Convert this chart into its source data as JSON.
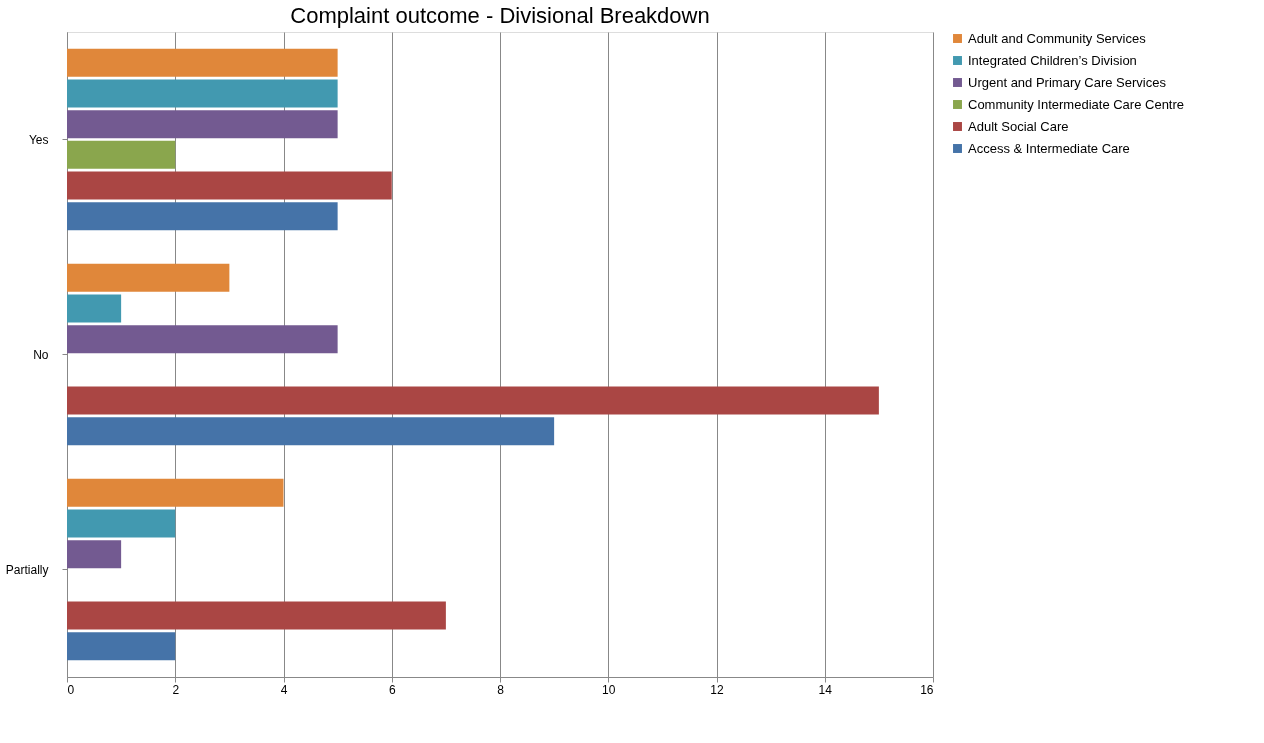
{
  "chart_data": {
    "type": "bar",
    "orientation": "horizontal",
    "title": "Complaint outcome -  Divisional Breakdown",
    "categories": [
      "Yes",
      "No",
      "Partially"
    ],
    "series": [
      {
        "name": "Adult and Community Services",
        "color": "#e0873a",
        "values": [
          5,
          3,
          4
        ]
      },
      {
        "name": "Integrated Children’s Division",
        "color": "#4299b0",
        "values": [
          5,
          1,
          2
        ]
      },
      {
        "name": "Urgent and Primary Care Services",
        "color": "#735a91",
        "values": [
          5,
          5,
          1
        ]
      },
      {
        "name": "Community Intermediate Care Centre",
        "color": "#8aa64d",
        "values": [
          2,
          null,
          null
        ]
      },
      {
        "name": "Adult Social Care",
        "color": "#aa4644",
        "values": [
          6,
          15,
          7
        ]
      },
      {
        "name": "Access & Intermediate Care",
        "color": "#4573a8",
        "values": [
          5,
          9,
          2
        ]
      }
    ],
    "xlim": [
      0,
      16
    ],
    "xticks": [
      0,
      2,
      4,
      6,
      8,
      10,
      12,
      14,
      16
    ],
    "grid": "x",
    "legend": "right"
  }
}
